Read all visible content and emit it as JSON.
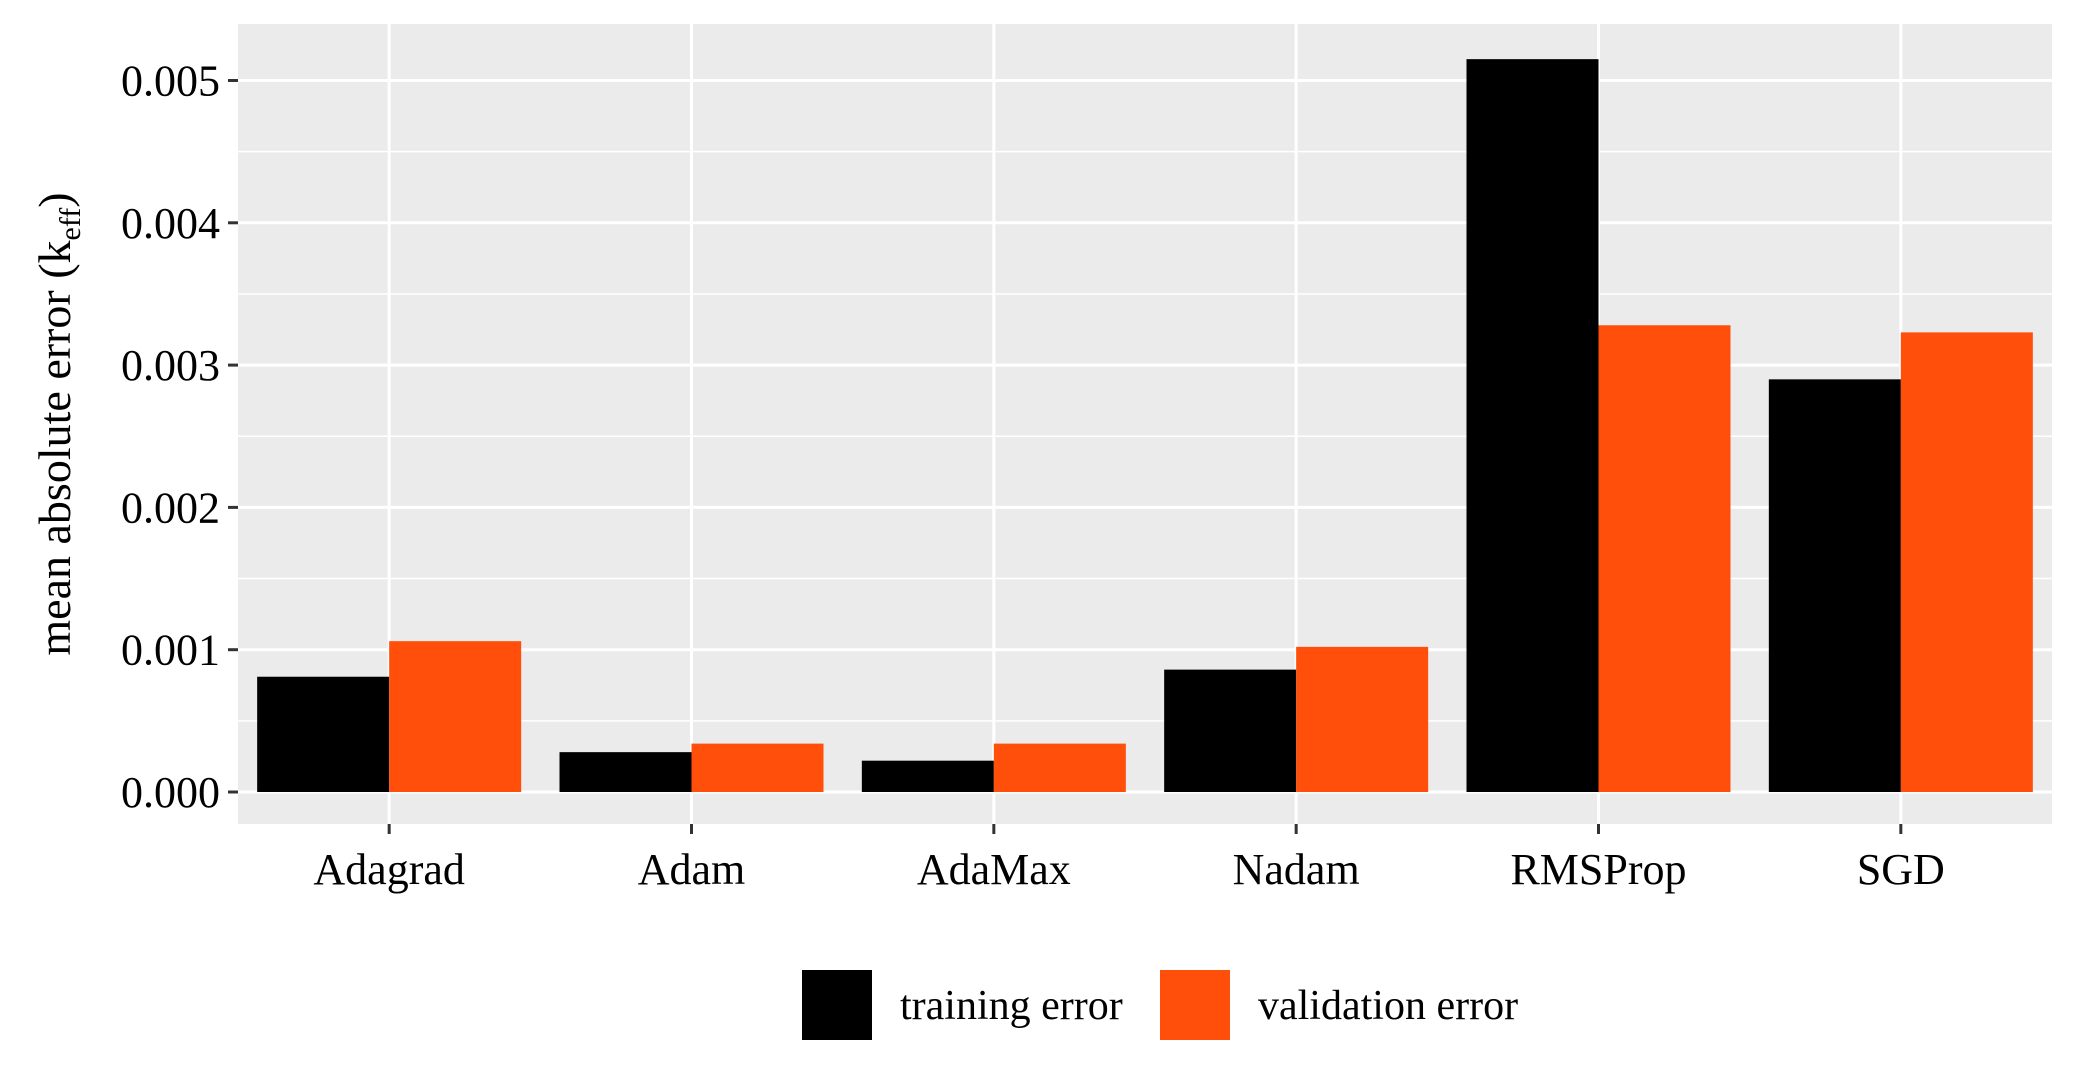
{
  "chart_data": {
    "type": "bar",
    "ylabel": "mean absolute error (k",
    "ylabel_sub": "eff",
    "ylabel_close": ")",
    "categories": [
      "Adagrad",
      "Adam",
      "AdaMax",
      "Nadam",
      "RMSProp",
      "SGD"
    ],
    "series": [
      {
        "name": "training error",
        "color": "#000000",
        "values": [
          0.00081,
          0.00028,
          0.00022,
          0.00086,
          0.00515,
          0.0029
        ]
      },
      {
        "name": "validation error",
        "color": "#FF4F0A",
        "values": [
          0.00106,
          0.00034,
          0.00034,
          0.00102,
          0.00328,
          0.00323
        ]
      }
    ],
    "yticks": [
      "0.000",
      "0.001",
      "0.002",
      "0.003",
      "0.004",
      "0.005"
    ],
    "ytick_values": [
      0,
      0.001,
      0.002,
      0.003,
      0.004,
      0.005
    ],
    "ylim": [
      -0.00025,
      0.0054
    ],
    "grid": true,
    "legend_position": "bottom",
    "panel_color": "#EBEBEB",
    "grid_color": "#FFFFFF"
  }
}
